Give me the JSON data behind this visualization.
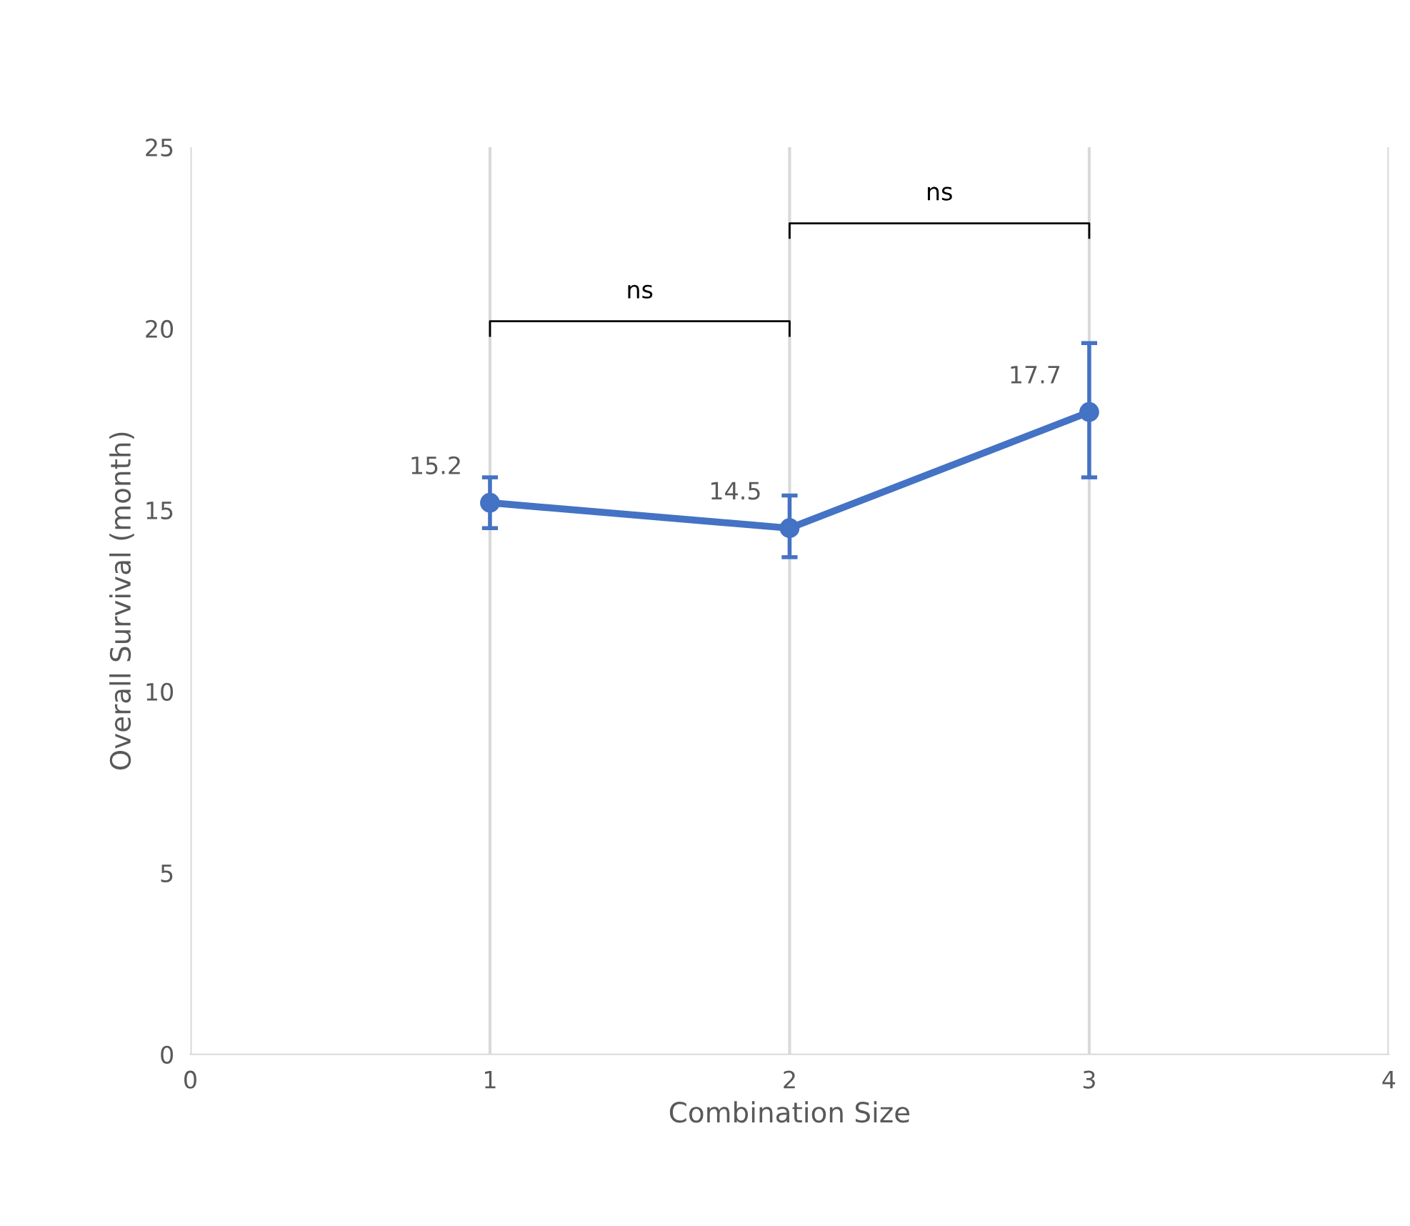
{
  "chart_data": {
    "type": "line",
    "xlabel": "Combination Size",
    "ylabel": "Overall Survival (month)",
    "x": [
      1,
      2,
      3
    ],
    "series": [
      {
        "color": "#4472c4",
        "values": [
          15.2,
          14.5,
          17.7
        ],
        "errors": [
          [
            14.5,
            15.9
          ],
          [
            13.7,
            15.4
          ],
          [
            15.9,
            19.6
          ]
        ]
      }
    ],
    "xlim": [
      0,
      4
    ],
    "xticks": [
      0,
      1,
      2,
      3,
      4
    ],
    "ylim": [
      0,
      25
    ],
    "yticks": [
      0,
      5,
      10,
      15,
      20,
      25
    ],
    "grid": "x",
    "marker": "circle",
    "line_style": "solid",
    "data_labels": true,
    "legend": false,
    "annotations": [
      "ns",
      "ns"
    ]
  }
}
